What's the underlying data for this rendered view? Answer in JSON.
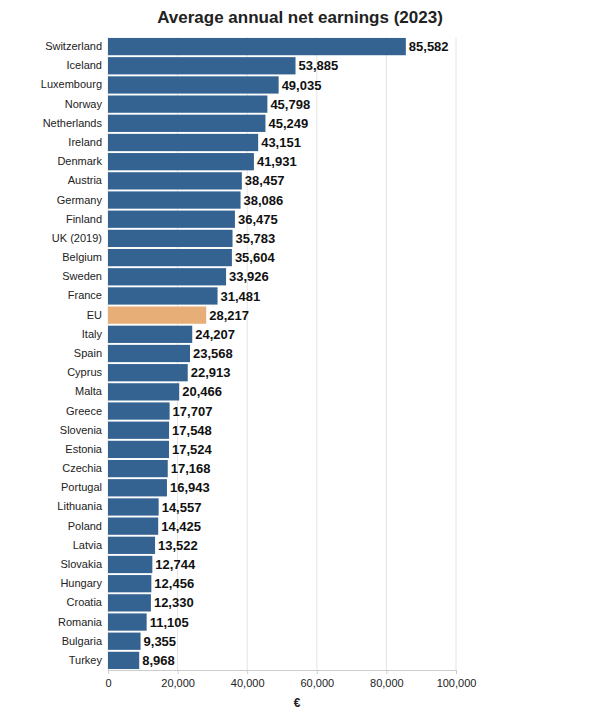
{
  "chart_data": {
    "type": "bar",
    "title": "Average annual net earnings (2023)",
    "xlabel": "€",
    "orientation": "horizontal",
    "data_labels": true,
    "grid": true,
    "categories": [
      "Switzerland",
      "Iceland",
      "Luxembourg",
      "Norway",
      "Netherlands",
      "Ireland",
      "Denmark",
      "Austria",
      "Germany",
      "Finland",
      "UK (2019)",
      "Belgium",
      "Sweden",
      "France",
      "EU",
      "Italy",
      "Spain",
      "Cyprus",
      "Malta",
      "Greece",
      "Slovenia",
      "Estonia",
      "Czechia",
      "Portugal",
      "Lithuania",
      "Poland",
      "Latvia",
      "Slovakia",
      "Hungary",
      "Croatia",
      "Romania",
      "Bulgaria",
      "Turkey"
    ],
    "values": [
      85582,
      53885,
      49035,
      45798,
      45249,
      43151,
      41931,
      38457,
      38086,
      36475,
      35783,
      35604,
      33926,
      31481,
      28217,
      24207,
      23568,
      22913,
      20466,
      17707,
      17548,
      17524,
      17168,
      16943,
      14557,
      14425,
      13522,
      12744,
      12456,
      12330,
      11105,
      9355,
      8968
    ],
    "value_labels": [
      "85,582",
      "53,885",
      "49,035",
      "45,798",
      "45,249",
      "43,151",
      "41,931",
      "38,457",
      "38,086",
      "36,475",
      "35,783",
      "35,604",
      "33,926",
      "31,481",
      "28,217",
      "24,207",
      "23,568",
      "22,913",
      "20,466",
      "17,707",
      "17,548",
      "17,524",
      "17,168",
      "16,943",
      "14,557",
      "14,425",
      "13,522",
      "12,744",
      "12,456",
      "12,330",
      "11,105",
      "9,355",
      "8,968"
    ],
    "colors": [
      "#356391",
      "#356391",
      "#356391",
      "#356391",
      "#356391",
      "#356391",
      "#356391",
      "#356391",
      "#356391",
      "#356391",
      "#356391",
      "#356391",
      "#356391",
      "#356391",
      "#e8ae78",
      "#356391",
      "#356391",
      "#356391",
      "#356391",
      "#356391",
      "#356391",
      "#356391",
      "#356391",
      "#356391",
      "#356391",
      "#356391",
      "#356391",
      "#356391",
      "#356391",
      "#356391",
      "#356391",
      "#356391",
      "#356391"
    ],
    "xlim": [
      0,
      100000
    ],
    "xticks": [
      0,
      {
        "value": 20000,
        "label": "20,000"
      },
      {
        "value": 40000,
        "label": "40,000"
      },
      {
        "value": 60000,
        "label": "60,000"
      },
      {
        "value": 80000,
        "label": "80,000"
      },
      {
        "value": 100000,
        "label": "100,000"
      }
    ]
  }
}
